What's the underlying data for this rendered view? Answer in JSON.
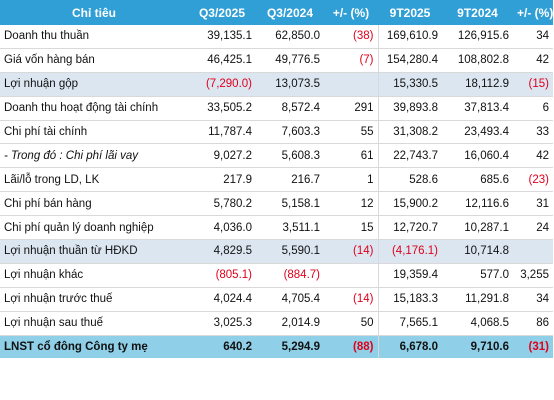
{
  "headers": [
    "Chỉ tiêu",
    "Q3/2025",
    "Q3/2024",
    "+/- (%)",
    "9T2025",
    "9T2024",
    "+/- (%)"
  ],
  "rows": [
    {
      "label": "Doanh thu thuần",
      "q3_2025": "39,135.1",
      "q3_2024": "62,850.0",
      "q_change": "(38)",
      "t9_2025": "169,610.9",
      "t9_2024": "126,915.6",
      "t_change": "34",
      "style": "normal"
    },
    {
      "label": "Giá vốn hàng bán",
      "q3_2025": "46,425.1",
      "q3_2024": "49,776.5",
      "q_change": "(7)",
      "t9_2025": "154,280.4",
      "t9_2024": "108,802.8",
      "t_change": "42",
      "style": "normal"
    },
    {
      "label": "Lợi nhuận gộp",
      "q3_2025": "(7,290.0)",
      "q3_2024": "13,073.5",
      "q_change": "",
      "t9_2025": "15,330.5",
      "t9_2024": "18,112.9",
      "t_change": "(15)",
      "style": "highlight"
    },
    {
      "label": "Doanh thu hoạt động tài chính",
      "q3_2025": "33,505.2",
      "q3_2024": "8,572.4",
      "q_change": "291",
      "t9_2025": "39,893.8",
      "t9_2024": "37,813.4",
      "t_change": "6",
      "style": "normal"
    },
    {
      "label": "Chi phí tài chính",
      "q3_2025": "11,787.4",
      "q3_2024": "7,603.3",
      "q_change": "55",
      "t9_2025": "31,308.2",
      "t9_2024": "23,493.4",
      "t_change": "33",
      "style": "normal"
    },
    {
      "label": "- Trong đó : Chi phí lãi vay",
      "q3_2025": "9,027.2",
      "q3_2024": "5,608.3",
      "q_change": "61",
      "t9_2025": "22,743.7",
      "t9_2024": "16,060.4",
      "t_change": "42",
      "style": "italic"
    },
    {
      "label": "Lãi/lỗ trong LD, LK",
      "q3_2025": "217.9",
      "q3_2024": "216.7",
      "q_change": "1",
      "t9_2025": "528.6",
      "t9_2024": "685.6",
      "t_change": "(23)",
      "style": "normal"
    },
    {
      "label": "Chi phí bán hàng",
      "q3_2025": "5,780.2",
      "q3_2024": "5,158.1",
      "q_change": "12",
      "t9_2025": "15,900.2",
      "t9_2024": "12,116.6",
      "t_change": "31",
      "style": "normal"
    },
    {
      "label": "Chi phí quản lý doanh nghiệp",
      "q3_2025": "4,036.0",
      "q3_2024": "3,511.1",
      "q_change": "15",
      "t9_2025": "12,720.7",
      "t9_2024": "10,287.1",
      "t_change": "24",
      "style": "normal"
    },
    {
      "label": "Lợi nhuận thuần từ HĐKD",
      "q3_2025": "4,829.5",
      "q3_2024": "5,590.1",
      "q_change": "(14)",
      "t9_2025": "(4,176.1)",
      "t9_2024": "10,714.8",
      "t_change": "",
      "style": "highlight"
    },
    {
      "label": "Lợi nhuận khác",
      "q3_2025": "(805.1)",
      "q3_2024": "(884.7)",
      "q_change": "",
      "t9_2025": "19,359.4",
      "t9_2024": "577.0",
      "t_change": "3,255",
      "style": "normal"
    },
    {
      "label": "Lợi nhuận trước thuế",
      "q3_2025": "4,024.4",
      "q3_2024": "4,705.4",
      "q_change": "(14)",
      "t9_2025": "15,183.3",
      "t9_2024": "11,291.8",
      "t_change": "34",
      "style": "normal"
    },
    {
      "label": "Lợi nhuận sau thuế",
      "q3_2025": "3,025.3",
      "q3_2024": "2,014.9",
      "q_change": "50",
      "t9_2025": "7,565.1",
      "t9_2024": "4,068.5",
      "t_change": "86",
      "style": "normal"
    },
    {
      "label": "LNST cổ đông Công ty mẹ",
      "q3_2025": "640.2",
      "q3_2024": "5,294.9",
      "q_change": "(88)",
      "t9_2025": "6,678.0",
      "t9_2024": "9,710.6",
      "t_change": "(31)",
      "style": "final"
    }
  ],
  "colors": {
    "header_bg": "#2f9fd6",
    "highlight_bg": "#dce6f1",
    "final_bg": "#8fd0e8",
    "negative": "#e0001b"
  }
}
